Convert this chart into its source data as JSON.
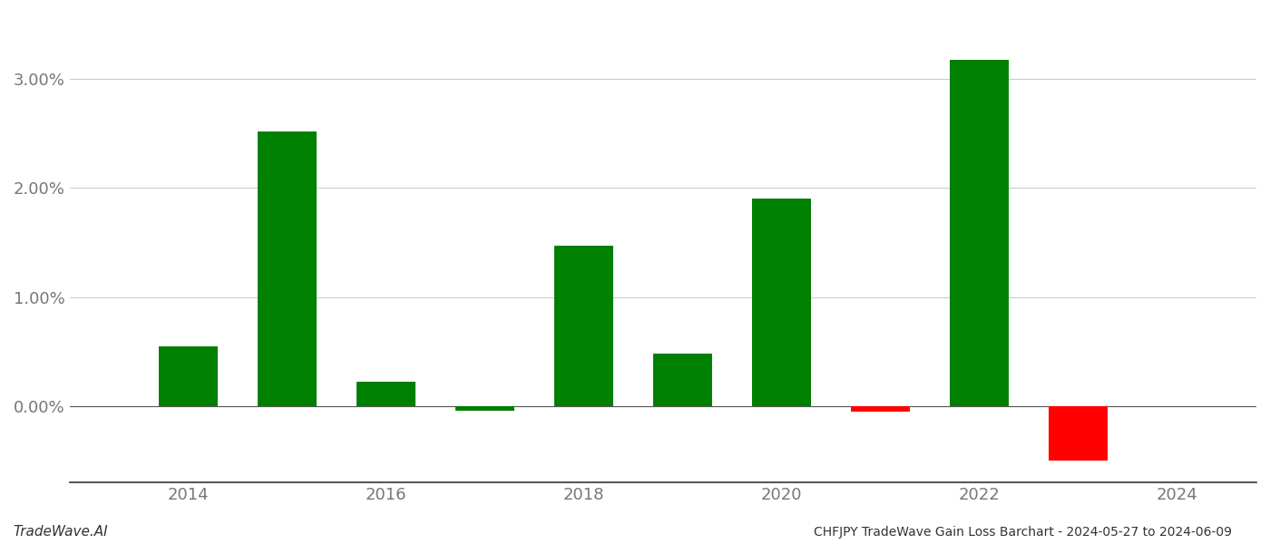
{
  "years": [
    2014,
    2015,
    2016,
    2017,
    2018,
    2019,
    2020,
    2021,
    2022,
    2023
  ],
  "values": [
    0.0055,
    0.0252,
    0.0022,
    -0.0004,
    0.0147,
    0.0048,
    0.019,
    -0.0005,
    0.0318,
    -0.005
  ],
  "bar_colors": [
    "#008000",
    "#008000",
    "#008000",
    "#008000",
    "#008000",
    "#008000",
    "#008000",
    "#ff0000",
    "#008000",
    "#ff0000"
  ],
  "title": "CHFJPY TradeWave Gain Loss Barchart - 2024-05-27 to 2024-06-09",
  "watermark": "TradeWave.AI",
  "background_color": "#ffffff",
  "grid_color": "#cccccc",
  "yticks": [
    0.0,
    0.01,
    0.02,
    0.03
  ],
  "ytick_labels": [
    "0.00%",
    "1.00%",
    "2.00%",
    "3.00%"
  ],
  "ylim": [
    -0.007,
    0.036
  ],
  "xlim": [
    2012.8,
    2024.8
  ],
  "bar_width": 0.6
}
